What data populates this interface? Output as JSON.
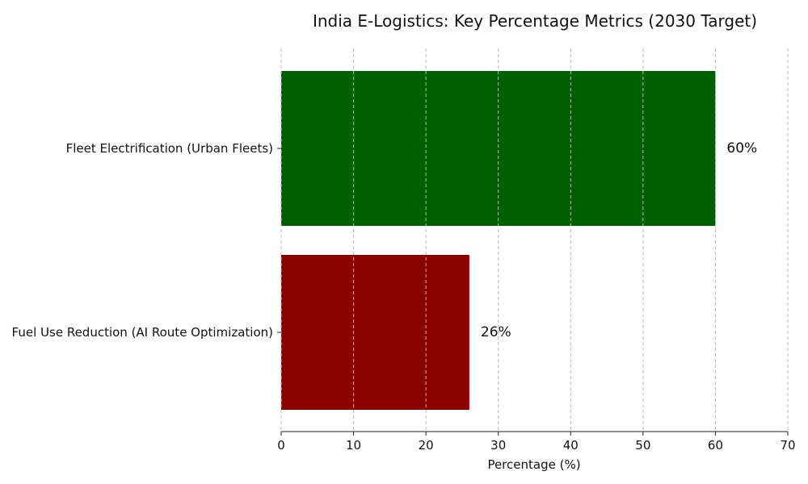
{
  "chart_data": {
    "type": "bar",
    "orientation": "horizontal",
    "title": "India E-Logistics: Key Percentage Metrics (2030 Target)",
    "xlabel": "Percentage (%)",
    "ylabel": "",
    "xlim": [
      0,
      70
    ],
    "xticks": [
      0,
      10,
      20,
      30,
      40,
      50,
      60,
      70
    ],
    "grid": "vertical dashed",
    "categories": [
      "Fleet Electrification (Urban Fleets)",
      "Fuel Use Reduction (AI Route Optimization)"
    ],
    "values": [
      60,
      26
    ],
    "data_labels": [
      "60%",
      "26%"
    ],
    "colors": [
      "#006000",
      "#8b0000"
    ]
  }
}
